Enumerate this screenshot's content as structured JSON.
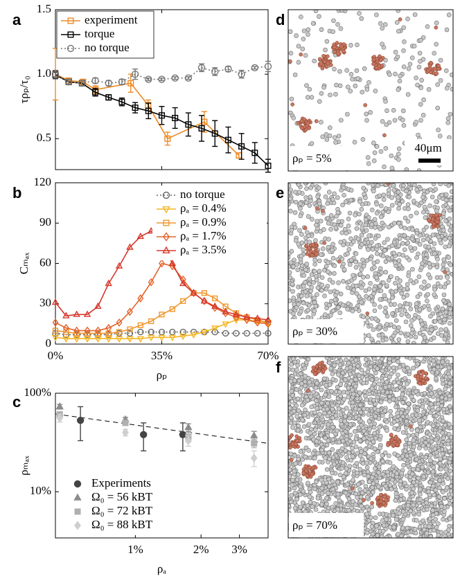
{
  "chart_data": [
    {
      "type": "line",
      "panel": "a",
      "ylabel": "τρₚ/τ₀",
      "legend": "upper left",
      "legend_box": true,
      "xlim": [
        0,
        70
      ],
      "xticks": [
        0,
        35,
        70
      ],
      "xticklabels": false,
      "ylim": [
        0.26,
        1.5
      ],
      "yticks": [
        0.5,
        {
          "value": 1,
          "label": "1.0"
        },
        1.5
      ],
      "series": [
        {
          "name": "experiment",
          "color": "#ee8a23",
          "marker": "square",
          "dash": "solid",
          "x": [
            0,
            4.4,
            9.1,
            13.2,
            24.8,
            30.5,
            36.9,
            49,
            60.4
          ],
          "values": [
            1.0,
            0.95,
            0.94,
            0.88,
            0.93,
            0.76,
            0.5,
            0.63,
            0.37
          ],
          "err": [
            0.2,
            0.02,
            0.02,
            0.03,
            0.07,
            0.04,
            0.05,
            0.08,
            0.02
          ]
        },
        {
          "name": "torque",
          "color": "#000000",
          "marker": "square",
          "dash": "solid",
          "x": [
            0,
            4.375,
            8.75,
            13.125,
            17.5,
            21.875,
            26.25,
            30.625,
            35,
            39.375,
            43.75,
            48.125,
            52.5,
            56.875,
            61.25,
            65.625,
            70
          ],
          "values": [
            0.995,
            0.94,
            0.93,
            0.86,
            0.82,
            0.785,
            0.74,
            0.715,
            0.68,
            0.66,
            0.61,
            0.58,
            0.54,
            0.49,
            0.44,
            0.39,
            0.29
          ],
          "err": [
            0.03,
            0.02,
            0.02,
            0.03,
            0.02,
            0.03,
            0.04,
            0.06,
            0.07,
            0.08,
            0.09,
            0.1,
            0.1,
            0.1,
            0.1,
            0.08,
            0.05
          ]
        },
        {
          "name": "no torque",
          "color": "#777777",
          "marker": "circle",
          "dash": "dotted",
          "x": [
            0,
            4.375,
            8.75,
            13.125,
            17.5,
            21.875,
            26.25,
            30.625,
            35,
            39.375,
            43.75,
            48.125,
            52.5,
            56.875,
            61.25,
            65.625,
            70
          ],
          "values": [
            1.0,
            0.94,
            0.93,
            0.95,
            0.93,
            0.94,
            1.0,
            0.96,
            0.96,
            0.97,
            0.97,
            1.05,
            1.02,
            1.04,
            1.0,
            1.05,
            1.06
          ],
          "err": [
            0.03,
            0.02,
            0.02,
            0.02,
            0.02,
            0.02,
            0.04,
            0.01,
            0.01,
            0.01,
            0.01,
            0.03,
            0.03,
            0.02,
            0.03,
            0.01,
            0.04
          ]
        }
      ]
    },
    {
      "type": "line",
      "panel": "b",
      "ylabel": "Cₘₐₓ",
      "xlabel": "ρₚ",
      "legend": "upper right",
      "legend_box": false,
      "xlim": [
        0,
        70
      ],
      "xticks": [
        {
          "value": 0,
          "label": "0%"
        },
        {
          "value": 35,
          "label": "35%"
        },
        {
          "value": 70,
          "label": "70%"
        }
      ],
      "ylim": [
        0,
        120
      ],
      "yticks": [
        0,
        30,
        60,
        90,
        120
      ],
      "x": [
        0,
        3.5,
        7,
        10.5,
        14,
        17.5,
        21,
        24.5,
        28,
        31.5,
        35,
        38.5,
        42,
        45.5,
        49,
        52.5,
        56,
        59.5,
        63,
        66.5,
        70
      ],
      "series": [
        {
          "name": "no torque",
          "color": "#666666",
          "marker": "circle",
          "dash": "dotted",
          "values": [
            8,
            7,
            7,
            7,
            7,
            7,
            8,
            8,
            9,
            9,
            9,
            9,
            9,
            9,
            9,
            9,
            8,
            8,
            8,
            8,
            8
          ]
        },
        {
          "name": "ρₐ = 0.4%",
          "color": "#f5b520",
          "marker": "triangle-down",
          "dash": "solid",
          "values": [
            5,
            4,
            4,
            4,
            4,
            4,
            4,
            4,
            4,
            5,
            5,
            5,
            6,
            7,
            9,
            12,
            15,
            18,
            18,
            17,
            16
          ]
        },
        {
          "name": "ρₐ = 0.9%",
          "color": "#f0962c",
          "marker": "square",
          "dash": "solid",
          "values": [
            10,
            9,
            8,
            8,
            8,
            8,
            9,
            11,
            14,
            17,
            22,
            26,
            32,
            38,
            38,
            34,
            28,
            23,
            20,
            18,
            16
          ]
        },
        {
          "name": "ρₐ = 1.7%",
          "color": "#e2632a",
          "marker": "diamond",
          "dash": "solid",
          "values": [
            16,
            12,
            10,
            10,
            10,
            12,
            16,
            24,
            34,
            46,
            60,
            58,
            48,
            38,
            32,
            27,
            23,
            20,
            18,
            16,
            15
          ]
        },
        {
          "name": "ρₐ = 3.5%",
          "color": "#d6362a",
          "marker": "triangle",
          "dash": "solid",
          "values": [
            31,
            21,
            22,
            22,
            28,
            45,
            58,
            72,
            80,
            84,
            76,
            60,
            45,
            38,
            32,
            28,
            24,
            22,
            20,
            19,
            18
          ]
        }
      ]
    },
    {
      "type": "scatter",
      "panel": "c",
      "ylabel": "ρₘₐₓ",
      "xlabel": "ρₐ",
      "legend": "lower left",
      "legend_box": false,
      "xscale": "log",
      "yscale": "log",
      "filled": true,
      "xlim": [
        0.43,
        4.06
      ],
      "xticks": [
        {
          "value": 1,
          "label": "1%"
        },
        {
          "value": 2,
          "label": "2%"
        },
        {
          "value": 3,
          "label": "3%"
        }
      ],
      "ylim": [
        3.4,
        100
      ],
      "yticks": [
        {
          "value": 10,
          "label": "10%"
        },
        {
          "value": 100,
          "label": "100%"
        }
      ],
      "fit": {
        "x": [
          0.43,
          4.06
        ],
        "y": [
          61.5,
          31
        ]
      },
      "series": [
        {
          "name": "Experiments",
          "color": "#444444",
          "marker": "circle",
          "x": [
            0.56,
            1.09,
            1.65
          ],
          "values": [
            53,
            38,
            38
          ],
          "err": [
            20,
            12,
            12
          ]
        },
        {
          "name": "Ω₀ = 56 kBT",
          "color": "#8c8c8c",
          "marker": "triangle",
          "x": [
            0.45,
            0.9,
            1.75,
            3.5
          ],
          "values": [
            73,
            54,
            45,
            37
          ],
          "err": [
            4,
            3,
            4,
            4
          ]
        },
        {
          "name": "Ω₀ = 72 kBT",
          "color": "#b0b0b0",
          "marker": "square",
          "x": [
            0.45,
            0.9,
            1.75,
            3.5
          ],
          "values": [
            61,
            50,
            36,
            31
          ],
          "err": [
            4,
            3,
            4,
            3
          ]
        },
        {
          "name": "Ω₀ = 88 kBT",
          "color": "#cfcfcf",
          "marker": "diamond",
          "x": [
            0.45,
            0.9,
            1.75,
            3.5
          ],
          "values": [
            56,
            40,
            33,
            22
          ],
          "err": [
            5,
            3,
            4,
            4
          ]
        }
      ]
    }
  ],
  "images": [
    {
      "panel": "d",
      "label": "ρₚ = 5%",
      "scale_bar": "40μm"
    },
    {
      "panel": "e",
      "label": "ρₚ = 30%"
    },
    {
      "panel": "f",
      "label": "ρₚ = 70%"
    }
  ]
}
